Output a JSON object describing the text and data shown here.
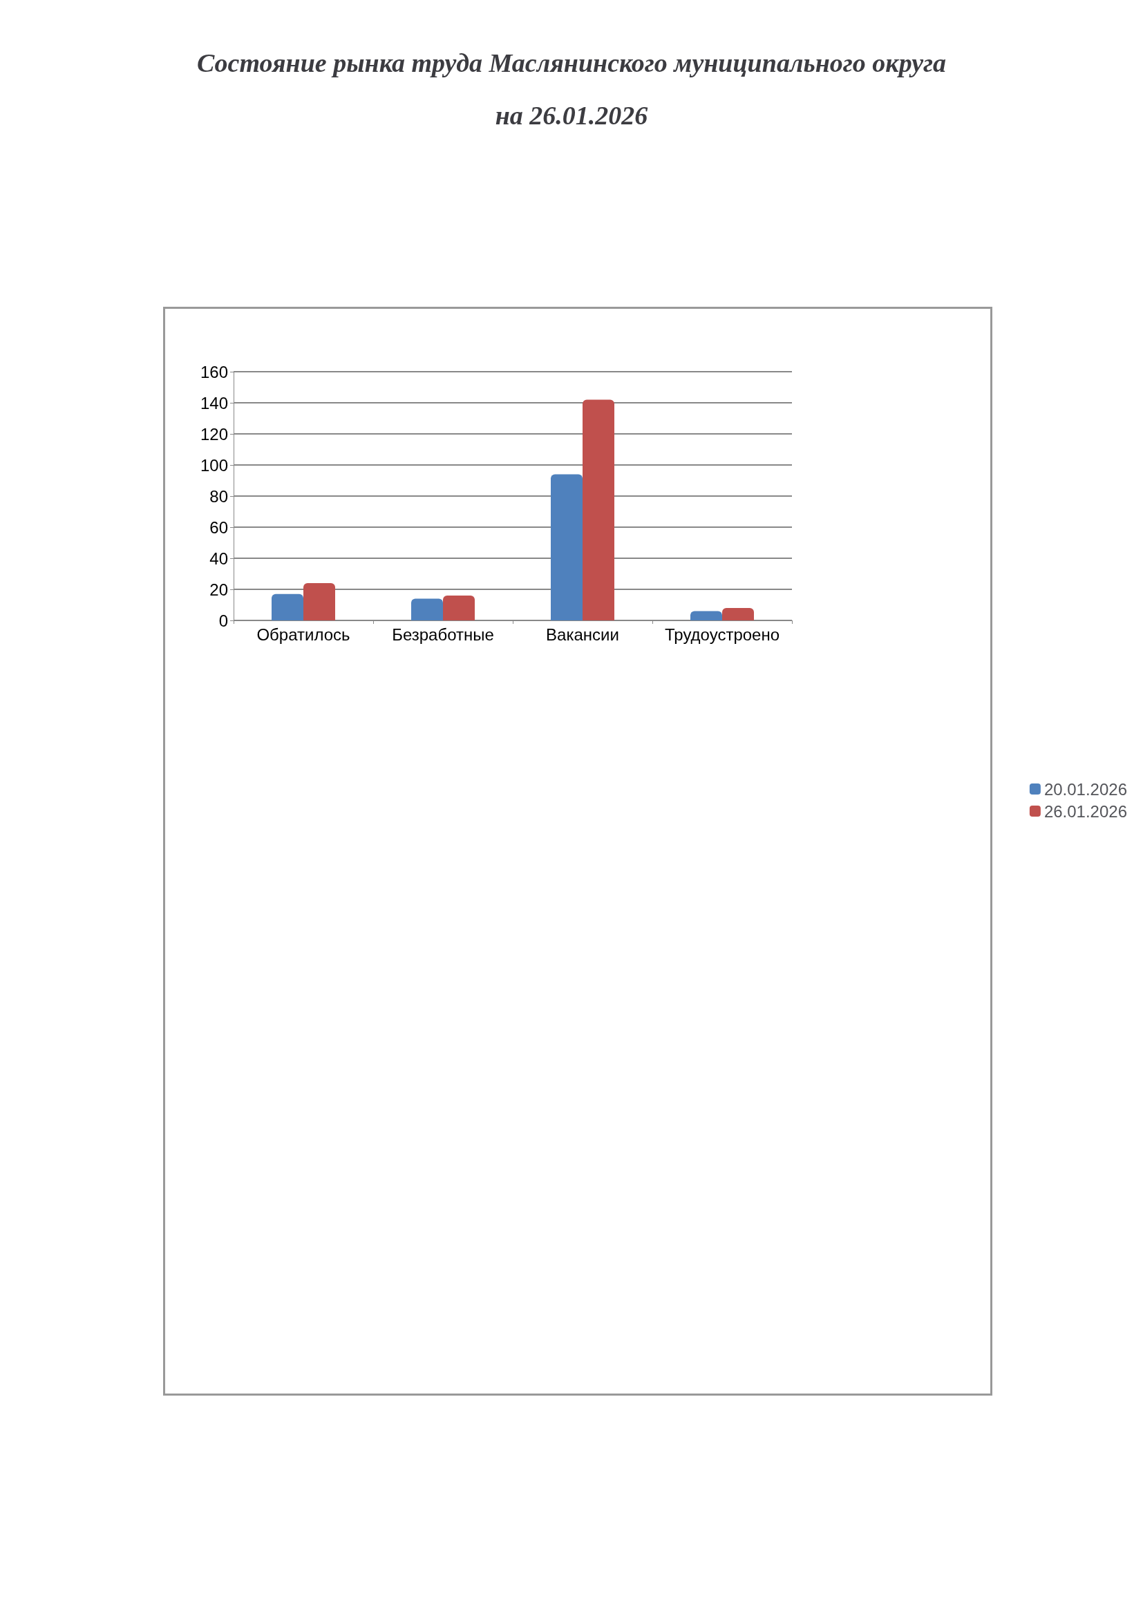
{
  "chart_data": {
    "type": "bar",
    "title": "Состояние рынка труда Маслянинского муниципального округа\nна 26.01.2026",
    "categories": [
      "Обратилось",
      "Безработные",
      "Вакансии",
      "Трудоустроено"
    ],
    "series": [
      {
        "name": "20.01.2026",
        "color": "#4f81bd",
        "values": [
          17,
          14,
          94,
          6
        ]
      },
      {
        "name": "26.01.2026",
        "color": "#c0504d",
        "values": [
          24,
          16,
          142,
          8
        ]
      }
    ],
    "ylim": [
      0,
      160
    ],
    "yticks": [
      0,
      20,
      40,
      60,
      80,
      100,
      120,
      140,
      160
    ],
    "grid": "y",
    "legend": "right"
  }
}
